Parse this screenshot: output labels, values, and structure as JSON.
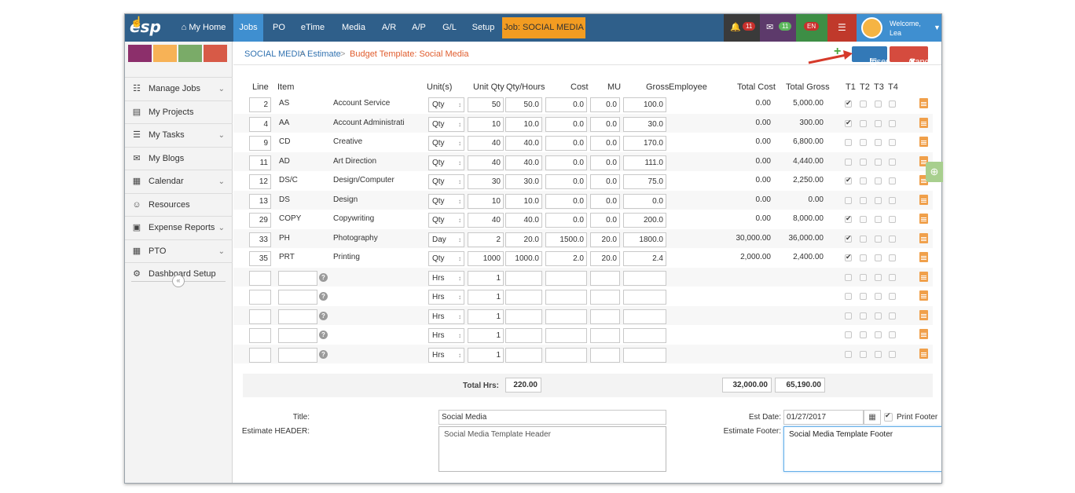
{
  "topnav": {
    "logo": "esp",
    "items": [
      "My Home",
      "Jobs",
      "PO",
      "eTime",
      "Media",
      "A/R",
      "A/P",
      "G/L",
      "Setup"
    ],
    "job_badge": "Job: SOCIAL MEDIA",
    "notifications_count": "11",
    "messages_count": "11",
    "language": "EN",
    "welcome_label": "Welcome,",
    "user_name": "Lea",
    "colors": {
      "bar": "#2f5f8a",
      "active": "#3f8fd0",
      "job": "#f39c21"
    }
  },
  "sidebar": {
    "swatch_colors": [
      "#8c2f6b",
      "#f7b256",
      "#7aab68",
      "#d75a47"
    ],
    "items": [
      {
        "label": "Manage Jobs",
        "icon": "sitemap-icon",
        "expandable": true
      },
      {
        "label": "My Projects",
        "icon": "folder-icon",
        "expandable": false
      },
      {
        "label": "My Tasks",
        "icon": "tasks-icon",
        "expandable": true
      },
      {
        "label": "My Blogs",
        "icon": "comments-icon",
        "expandable": false
      },
      {
        "label": "Calendar",
        "icon": "calendar-icon",
        "expandable": true
      },
      {
        "label": "Resources",
        "icon": "users-icon",
        "expandable": false
      },
      {
        "label": "Expense Reports",
        "icon": "money-icon",
        "expandable": true
      },
      {
        "label": "PTO",
        "icon": "calendar-grid-icon",
        "expandable": true
      },
      {
        "label": "Dashboard Setup",
        "icon": "gears-icon",
        "expandable": false
      }
    ],
    "collapse_glyph": "«"
  },
  "breadcrumb": {
    "level1": "SOCIAL MEDIA",
    "level2": "Estimate",
    "current": "Budget Template: Social Media",
    "separator": ">"
  },
  "actions": {
    "insert_label": "Insert",
    "cancel_label": "Cancel"
  },
  "table": {
    "headers": {
      "line": "Line",
      "item": "Item",
      "units": "Unit(s)",
      "unit_qty": "Unit Qty",
      "qty_hours": "Qty/Hours",
      "cost": "Cost",
      "mu": "MU",
      "gross": "Gross",
      "employee": "Employee",
      "total_cost": "Total Cost",
      "total_gross": "Total Gross",
      "t1": "T1",
      "t2": "T2",
      "t3": "T3",
      "t4": "T4"
    },
    "rows": [
      {
        "line": "2",
        "code": "AS",
        "desc": "Account Service",
        "unit": "Qty",
        "unit_qty": "50",
        "qty_hours": "50.0",
        "cost": "0.0",
        "mu": "0.0",
        "gross": "100.0",
        "total_cost": "0.00",
        "total_gross": "5,000.00",
        "t1": true
      },
      {
        "line": "4",
        "code": "AA",
        "desc": "Account Administrati",
        "unit": "Qty",
        "unit_qty": "10",
        "qty_hours": "10.0",
        "cost": "0.0",
        "mu": "0.0",
        "gross": "30.0",
        "total_cost": "0.00",
        "total_gross": "300.00",
        "t1": true
      },
      {
        "line": "9",
        "code": "CD",
        "desc": "Creative",
        "unit": "Qty",
        "unit_qty": "40",
        "qty_hours": "40.0",
        "cost": "0.0",
        "mu": "0.0",
        "gross": "170.0",
        "total_cost": "0.00",
        "total_gross": "6,800.00",
        "t1": false
      },
      {
        "line": "11",
        "code": "AD",
        "desc": "Art Direction",
        "unit": "Qty",
        "unit_qty": "40",
        "qty_hours": "40.0",
        "cost": "0.0",
        "mu": "0.0",
        "gross": "111.0",
        "total_cost": "0.00",
        "total_gross": "4,440.00",
        "t1": false
      },
      {
        "line": "12",
        "code": "DS/C",
        "desc": "Design/Computer",
        "unit": "Qty",
        "unit_qty": "30",
        "qty_hours": "30.0",
        "cost": "0.0",
        "mu": "0.0",
        "gross": "75.0",
        "total_cost": "0.00",
        "total_gross": "2,250.00",
        "t1": true
      },
      {
        "line": "13",
        "code": "DS",
        "desc": "Design",
        "unit": "Qty",
        "unit_qty": "10",
        "qty_hours": "10.0",
        "cost": "0.0",
        "mu": "0.0",
        "gross": "0.0",
        "total_cost": "0.00",
        "total_gross": "0.00",
        "t1": false
      },
      {
        "line": "29",
        "code": "COPY",
        "desc": "Copywriting",
        "unit": "Qty",
        "unit_qty": "40",
        "qty_hours": "40.0",
        "cost": "0.0",
        "mu": "0.0",
        "gross": "200.0",
        "total_cost": "0.00",
        "total_gross": "8,000.00",
        "t1": true
      },
      {
        "line": "33",
        "code": "PH",
        "desc": "Photography",
        "unit": "Day",
        "unit_qty": "2",
        "qty_hours": "20.0",
        "cost": "1500.0",
        "mu": "20.0",
        "gross": "1800.0",
        "total_cost": "30,000.00",
        "total_gross": "36,000.00",
        "t1": true
      },
      {
        "line": "35",
        "code": "PRT",
        "desc": "Printing",
        "unit": "Qty",
        "unit_qty": "1000",
        "qty_hours": "1000.0",
        "cost": "2.0",
        "mu": "20.0",
        "gross": "2.4",
        "total_cost": "2,000.00",
        "total_gross": "2,400.00",
        "t1": true
      }
    ],
    "empty_rows": [
      {
        "unit": "Hrs",
        "unit_qty": "1"
      },
      {
        "unit": "Hrs",
        "unit_qty": "1"
      },
      {
        "unit": "Hrs",
        "unit_qty": "1"
      },
      {
        "unit": "Hrs",
        "unit_qty": "1"
      },
      {
        "unit": "Hrs",
        "unit_qty": "1"
      }
    ]
  },
  "totals": {
    "label": "Total Hrs:",
    "hours": "220.00",
    "total_cost": "32,000.00",
    "total_gross": "65,190.00"
  },
  "form": {
    "title_label": "Title:",
    "title_value": "Social Media",
    "header_label": "Estimate HEADER:",
    "header_value": "Social Media Template Header",
    "est_date_label": "Est Date:",
    "est_date_value": "01/27/2017",
    "print_footer_label": "Print Footer",
    "print_footer_checked": true,
    "footer_label": "Estimate Footer:",
    "footer_value": "Social Media Template Footer"
  }
}
